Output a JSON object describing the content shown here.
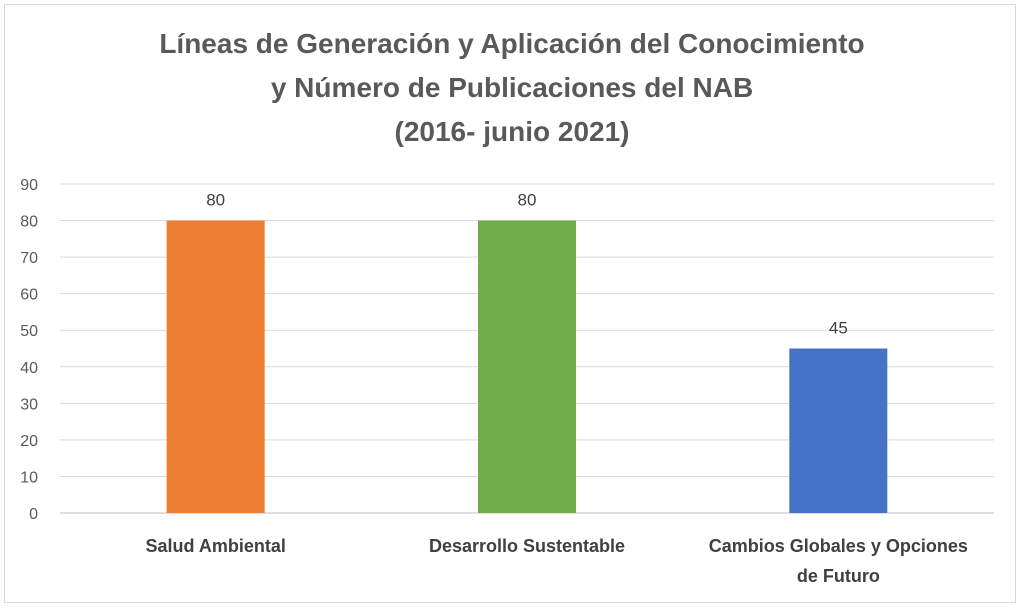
{
  "chart_data": {
    "type": "bar",
    "title_lines": [
      "Líneas de Generación y Aplicación del Conocimiento",
      "y Número de Publicaciones del NAB",
      "(2016- junio 2021)"
    ],
    "categories": [
      [
        "Salud Ambiental"
      ],
      [
        "Desarrollo Sustentable"
      ],
      [
        "Cambios Globales y Opciones",
        "de Futuro"
      ]
    ],
    "values": [
      80,
      80,
      45
    ],
    "data_labels": [
      "80",
      "80",
      "45"
    ],
    "colors": [
      "#ed7d31",
      "#70ad47",
      "#4472c4"
    ],
    "ylim": [
      0,
      90
    ],
    "yticks": [
      "0",
      "10",
      "20",
      "30",
      "40",
      "50",
      "60",
      "70",
      "80",
      "90"
    ],
    "grid": true
  }
}
